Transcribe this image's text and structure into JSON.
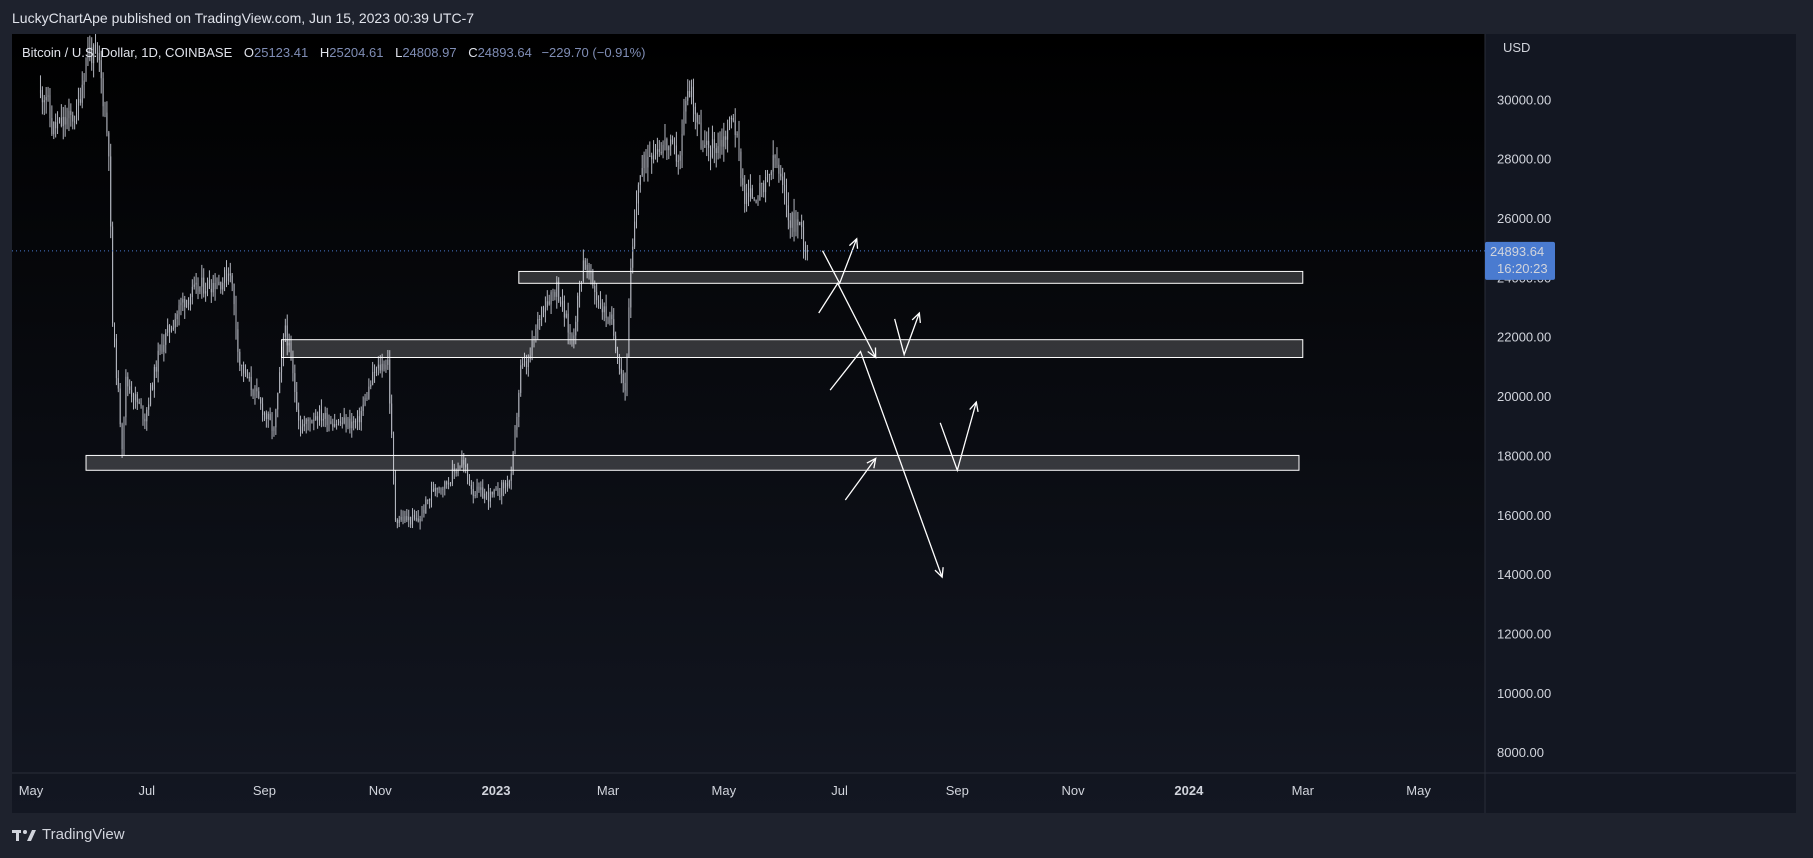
{
  "header": {
    "published_text": "LuckyChartApe published on TradingView.com, Jun 15, 2023 00:39 UTC-7"
  },
  "symbol": {
    "name": "Bitcoin / U.S. Dollar, 1D, COINBASE",
    "o_label": "O",
    "o_value": "25123.41",
    "h_label": "H",
    "h_value": "25204.61",
    "l_label": "L",
    "l_value": "24808.97",
    "c_label": "C",
    "c_value": "24893.64",
    "change": "−229.70 (−0.91%)"
  },
  "price_label": {
    "price": "24893.64",
    "countdown": "16:20:23"
  },
  "footer": {
    "brand": "TradingView"
  },
  "colors": {
    "background": "#000000",
    "candles": "#b2b5be",
    "zones": "#ffffff",
    "price_badge": "#4a7bd0",
    "panel": "#1e222d"
  },
  "icons": [
    "tradingview-logo-icon"
  ],
  "chart_data": {
    "type": "candlestick",
    "symbol": "BTCUSD",
    "timeframe": "1D",
    "currency": "USD",
    "x_tick_labels": [
      "May",
      "Jul",
      "Sep",
      "Nov",
      "2023",
      "Mar",
      "May",
      "Jul",
      "Sep",
      "Nov",
      "2024",
      "Mar",
      "May"
    ],
    "x_tick_dates": [
      "2022-05-01",
      "2022-07-01",
      "2022-09-01",
      "2022-11-01",
      "2023-01-01",
      "2023-03-01",
      "2023-05-01",
      "2023-07-01",
      "2023-09-01",
      "2023-11-01",
      "2024-01-01",
      "2024-03-01",
      "2024-05-01"
    ],
    "y_tick_labels": [
      "30000.00",
      "28000.00",
      "26000.00",
      "24000.00",
      "22000.00",
      "20000.00",
      "18000.00",
      "16000.00",
      "14000.00",
      "12000.00",
      "10000.00",
      "8000.00"
    ],
    "y_ticks": [
      30000,
      28000,
      26000,
      24000,
      22000,
      20000,
      18000,
      16000,
      14000,
      12000,
      10000,
      8000
    ],
    "y_range": [
      7300,
      32200
    ],
    "x_range": [
      "2022-04-21",
      "2024-06-05"
    ],
    "last_price": 24893.64,
    "closes": [
      [
        "2022-05-09",
        30200
      ],
      [
        "2022-05-12",
        29000
      ],
      [
        "2022-05-18",
        29200
      ],
      [
        "2022-05-25",
        29500
      ],
      [
        "2022-05-31",
        31700
      ],
      [
        "2022-06-06",
        31200
      ],
      [
        "2022-06-11",
        28400
      ],
      [
        "2022-06-13",
        22500
      ],
      [
        "2022-06-18",
        18400
      ],
      [
        "2022-06-20",
        20500
      ],
      [
        "2022-06-30",
        19300
      ],
      [
        "2022-07-08",
        21600
      ],
      [
        "2022-07-20",
        23200
      ],
      [
        "2022-07-30",
        23700
      ],
      [
        "2022-08-10",
        23900
      ],
      [
        "2022-08-14",
        24300
      ],
      [
        "2022-08-19",
        21100
      ],
      [
        "2022-08-26",
        20200
      ],
      [
        "2022-09-06",
        18800
      ],
      [
        "2022-09-12",
        22400
      ],
      [
        "2022-09-20",
        18900
      ],
      [
        "2022-09-28",
        19400
      ],
      [
        "2022-10-10",
        19100
      ],
      [
        "2022-10-20",
        19100
      ],
      [
        "2022-10-29",
        20800
      ],
      [
        "2022-11-05",
        21200
      ],
      [
        "2022-11-09",
        15900
      ],
      [
        "2022-11-21",
        15800
      ],
      [
        "2022-11-30",
        17000
      ],
      [
        "2022-12-05",
        17000
      ],
      [
        "2022-12-14",
        17800
      ],
      [
        "2022-12-20",
        16800
      ],
      [
        "2022-12-30",
        16600
      ],
      [
        "2023-01-09",
        17200
      ],
      [
        "2023-01-14",
        20900
      ],
      [
        "2023-01-18",
        21100
      ],
      [
        "2023-01-25",
        23000
      ],
      [
        "2023-02-02",
        23700
      ],
      [
        "2023-02-10",
        21800
      ],
      [
        "2023-02-16",
        24600
      ],
      [
        "2023-02-24",
        23200
      ],
      [
        "2023-03-03",
        22400
      ],
      [
        "2023-03-10",
        20200
      ],
      [
        "2023-03-13",
        24100
      ],
      [
        "2023-03-17",
        27300
      ],
      [
        "2023-03-23",
        28300
      ],
      [
        "2023-03-31",
        28500
      ],
      [
        "2023-04-08",
        28000
      ],
      [
        "2023-04-11",
        30200
      ],
      [
        "2023-04-14",
        30300
      ],
      [
        "2023-04-20",
        28300
      ],
      [
        "2023-04-26",
        28400
      ],
      [
        "2023-05-01",
        28700
      ],
      [
        "2023-05-06",
        29500
      ],
      [
        "2023-05-12",
        26700
      ],
      [
        "2023-05-22",
        26900
      ],
      [
        "2023-05-28",
        28000
      ],
      [
        "2023-06-05",
        25900
      ],
      [
        "2023-06-10",
        25800
      ],
      [
        "2023-06-14",
        24900
      ]
    ],
    "zones": [
      {
        "from": "2023-01-13",
        "to": "2024-03-01",
        "high": 24200,
        "low": 23800
      },
      {
        "from": "2022-09-10",
        "to": "2024-03-01",
        "high": 21900,
        "low": 21300
      },
      {
        "from": "2022-05-30",
        "to": "2024-02-28",
        "high": 18000,
        "low": 17500
      }
    ],
    "arrows": [
      [
        [
          "2023-06-22",
          24900
        ],
        [
          "2023-07-01",
          23800
        ],
        [
          "2023-07-10",
          25300
        ]
      ],
      [
        [
          "2023-06-20",
          22800
        ],
        [
          "2023-06-30",
          23800
        ],
        [
          "2023-07-20",
          21300
        ]
      ],
      [
        [
          "2023-07-30",
          22600
        ],
        [
          "2023-08-04",
          21400
        ],
        [
          "2023-08-12",
          22800
        ]
      ],
      [
        [
          "2023-06-26",
          20200
        ],
        [
          "2023-07-12",
          21500
        ],
        [
          "2023-08-24",
          13900
        ]
      ],
      [
        [
          "2023-07-04",
          16500
        ],
        [
          "2023-07-20",
          17900
        ]
      ],
      [
        [
          "2023-08-23",
          19100
        ],
        [
          "2023-09-01",
          17500
        ],
        [
          "2023-09-11",
          19800
        ]
      ]
    ]
  }
}
